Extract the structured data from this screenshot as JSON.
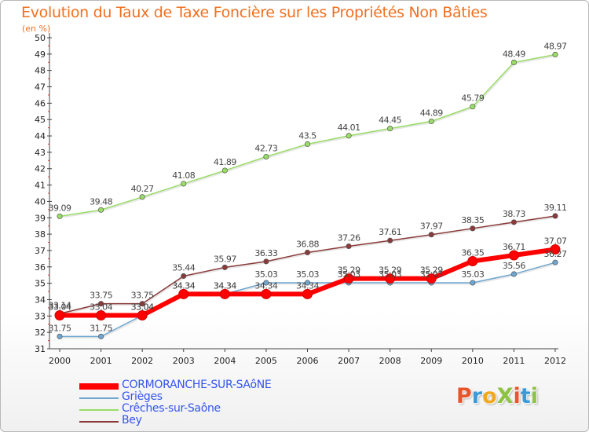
{
  "title": "Evolution du Taux de Taxe Foncière sur les Propriétés Non Bâties",
  "unit_label": "(en %)",
  "logo": {
    "text": "ProXiti",
    "letters": [
      {
        "ch": "P",
        "color": "#e8542a"
      },
      {
        "ch": "r",
        "color": "#3a9ad9"
      },
      {
        "ch": "o",
        "color": "#f2a81d"
      },
      {
        "ch": "X",
        "color": "#8cc43f"
      },
      {
        "ch": "i",
        "color": "#e8542a"
      },
      {
        "ch": "t",
        "color": "#3a9ad9"
      },
      {
        "ch": "i",
        "color": "#8cc43f"
      }
    ]
  },
  "chart_data": {
    "type": "line",
    "title": "Evolution du Taux de Taxe Foncière sur les Propriétés Non Bâties",
    "ylabel": "(en %)",
    "xlabel": "",
    "x": [
      "2000",
      "2001",
      "2002",
      "2003",
      "2004",
      "2005",
      "2006",
      "2007",
      "2008",
      "2009",
      "2010",
      "2011",
      "2012"
    ],
    "ylim": [
      31,
      50
    ],
    "yticks": [
      31,
      32,
      33,
      34,
      35,
      36,
      37,
      38,
      39,
      40,
      41,
      42,
      43,
      44,
      45,
      46,
      47,
      48,
      49,
      50
    ],
    "grid": false,
    "legend_position": "bottom-left",
    "series": [
      {
        "name": "CORMORANCHE-SUR-SAôNE",
        "color": "#ff0000",
        "line_width": 6,
        "values": [
          33.04,
          33.04,
          33.04,
          34.34,
          34.34,
          34.34,
          34.34,
          35.29,
          35.29,
          35.29,
          36.35,
          36.71,
          37.07
        ],
        "labels": [
          "33.04",
          "33.04",
          "33.04",
          "34.34",
          "34.34",
          "34.34",
          "34.34",
          "35.29",
          "35.29",
          "35.29",
          "36.35",
          "36.71",
          "37.07"
        ]
      },
      {
        "name": "Grièges",
        "color": "#6ea6d0",
        "line_width": 1.5,
        "values": [
          31.75,
          31.75,
          33.04,
          34.34,
          34.34,
          35.03,
          35.03,
          35.03,
          35.03,
          35.03,
          35.03,
          35.56,
          36.27
        ],
        "labels": [
          "31.75",
          "31.75",
          "33.04",
          "34.34",
          "34.34",
          "35.03",
          "35.03",
          "35.03",
          "35.03",
          "35.03",
          "35.03",
          "35.56",
          "36.27"
        ]
      },
      {
        "name": "Crêches-sur-Saône",
        "color": "#99dd66",
        "line_width": 1.5,
        "values": [
          39.09,
          39.48,
          40.27,
          41.08,
          41.89,
          42.73,
          43.5,
          44.01,
          44.45,
          44.89,
          45.79,
          48.49,
          48.97
        ],
        "labels": [
          "39.09",
          "39.48",
          "40.27",
          "41.08",
          "41.89",
          "42.73",
          "43.5",
          "44.01",
          "44.45",
          "44.89",
          "45.79",
          "48.49",
          "48.97"
        ]
      },
      {
        "name": "Bey",
        "color": "#8b3a3a",
        "line_width": 1.5,
        "values": [
          33.14,
          33.75,
          33.75,
          35.44,
          35.97,
          36.33,
          36.88,
          37.26,
          37.61,
          37.97,
          38.35,
          38.73,
          39.11
        ],
        "labels": [
          "33.14",
          "33.75",
          "33.75",
          "35.44",
          "35.97",
          "36.33",
          "36.88",
          "37.26",
          "37.61",
          "37.97",
          "38.35",
          "38.73",
          "39.11"
        ]
      }
    ]
  }
}
